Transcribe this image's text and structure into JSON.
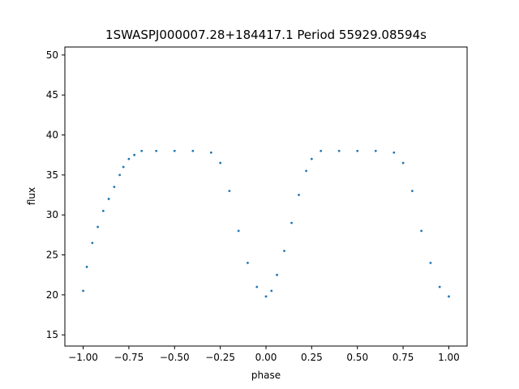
{
  "chart_data": {
    "type": "scatter",
    "title": "1SWASPJ000007.28+184417.1 Period 55929.08594s",
    "xlabel": "phase",
    "ylabel": "flux",
    "xlim": [
      -1.1,
      1.1
    ],
    "ylim": [
      13.6,
      51.0
    ],
    "xticks": [
      -1.0,
      -0.75,
      -0.5,
      -0.25,
      0.0,
      0.25,
      0.5,
      0.75,
      1.0
    ],
    "xtick_labels": [
      "−1.00",
      "−0.75",
      "−0.50",
      "−0.25",
      "0.00",
      "0.25",
      "0.50",
      "0.75",
      "1.00"
    ],
    "yticks": [
      15,
      20,
      25,
      30,
      35,
      40,
      45,
      50
    ],
    "ytick_labels": [
      "15",
      "20",
      "25",
      "30",
      "35",
      "40",
      "45",
      "50"
    ],
    "grid": false,
    "marker_color": "#1f77b4",
    "series": [
      {
        "points": [
          [
            -1.0,
            20.5
          ],
          [
            -0.98,
            23.5
          ],
          [
            -0.95,
            26.5
          ],
          [
            -0.92,
            28.5
          ],
          [
            -0.89,
            30.5
          ],
          [
            -0.86,
            32.0
          ],
          [
            -0.83,
            33.5
          ],
          [
            -0.8,
            35.0
          ],
          [
            -0.78,
            36.0
          ],
          [
            -0.75,
            37.0
          ],
          [
            -0.72,
            37.5
          ],
          [
            -0.68,
            38.0
          ],
          [
            -0.6,
            38.0
          ],
          [
            -0.5,
            38.0
          ],
          [
            -0.4,
            38.0
          ],
          [
            -0.3,
            37.8
          ],
          [
            -0.25,
            36.5
          ],
          [
            -0.2,
            33.0
          ],
          [
            -0.15,
            28.0
          ],
          [
            -0.1,
            24.0
          ],
          [
            -0.05,
            21.0
          ],
          [
            0.0,
            19.8
          ],
          [
            0.03,
            20.5
          ],
          [
            0.06,
            22.5
          ],
          [
            0.1,
            25.5
          ],
          [
            0.14,
            29.0
          ],
          [
            0.18,
            32.5
          ],
          [
            0.22,
            35.5
          ],
          [
            0.25,
            37.0
          ],
          [
            0.3,
            38.0
          ],
          [
            0.4,
            38.0
          ],
          [
            0.5,
            38.0
          ],
          [
            0.6,
            38.0
          ],
          [
            0.7,
            37.8
          ],
          [
            0.75,
            36.5
          ],
          [
            0.8,
            33.0
          ],
          [
            0.85,
            28.0
          ],
          [
            0.9,
            24.0
          ],
          [
            0.95,
            21.0
          ],
          [
            1.0,
            19.8
          ]
        ]
      }
    ]
  }
}
